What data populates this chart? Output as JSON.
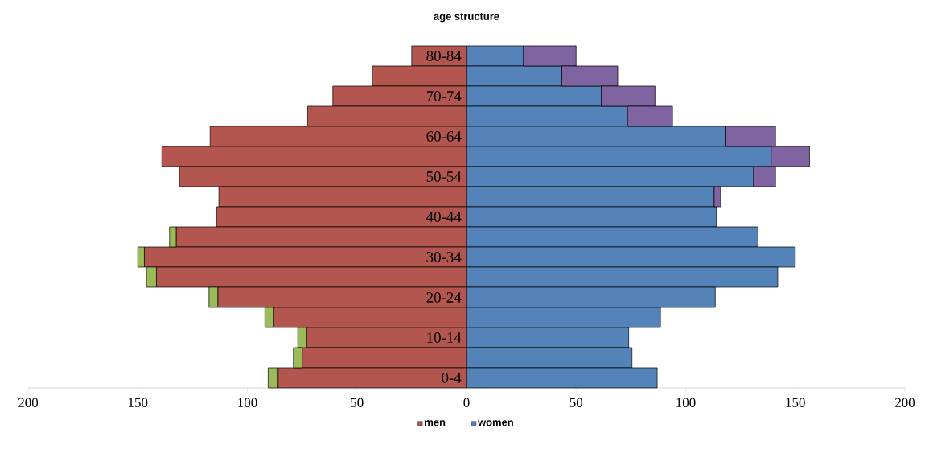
{
  "chart_data": {
    "type": "bar",
    "title": "age structure",
    "orientation": "horizontal",
    "stacked": true,
    "categories": [
      "80-84",
      null,
      "70-74",
      null,
      "60-64",
      null,
      "50-54",
      null,
      "40-44",
      null,
      "30-34",
      null,
      "20-24",
      null,
      "10-14",
      null,
      "0-4"
    ],
    "series": [
      {
        "name": "men",
        "color": "#b3564f",
        "values": [
          -25,
          -43,
          -61,
          -72.5,
          -117,
          -139,
          -131,
          -113,
          -114,
          -132.5,
          -147,
          -141.5,
          -113.5,
          -88,
          -73,
          -75,
          -86
        ]
      },
      {
        "color": "#9bbb59",
        "values": [
          0,
          0,
          0,
          0,
          0,
          0,
          0,
          0,
          0,
          -3,
          -3,
          -4.5,
          -4,
          -4,
          -4,
          -4,
          -4.5
        ]
      },
      {
        "name": "women",
        "color": "#5383b8",
        "values": [
          26,
          43.5,
          61.5,
          73.5,
          118,
          139,
          131,
          113,
          114,
          133,
          150,
          142,
          113.5,
          88.5,
          74,
          75.5,
          87
        ]
      },
      {
        "color": "#8064a2",
        "values": [
          24,
          25.5,
          24.5,
          20.5,
          23,
          17.5,
          10,
          3,
          0,
          0,
          0,
          0,
          0,
          0,
          0,
          0,
          0
        ]
      }
    ],
    "xlim": [
      -200,
      200
    ],
    "xticks": [
      {
        "value": -200,
        "label": "200"
      },
      {
        "value": -150,
        "label": "150"
      },
      {
        "value": -100,
        "label": "100"
      },
      {
        "value": -50,
        "label": "50"
      },
      0,
      50,
      100,
      150,
      200
    ],
    "legend": "bottom",
    "grid": false
  }
}
